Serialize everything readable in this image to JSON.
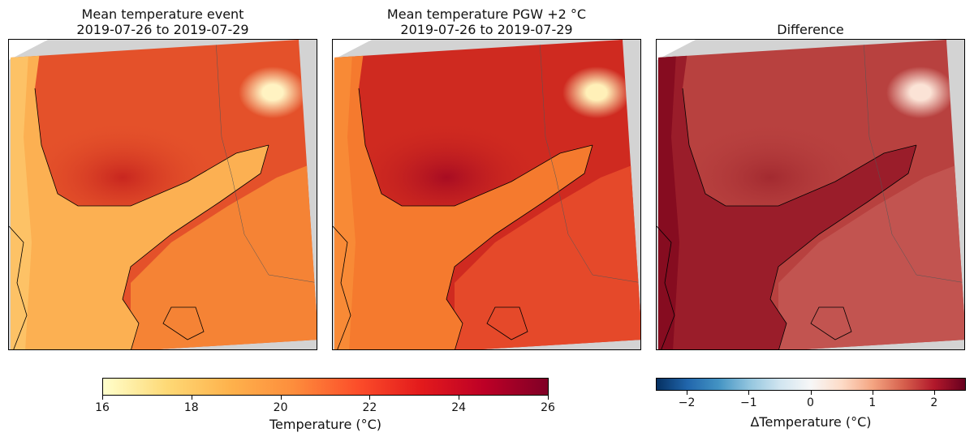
{
  "panels": [
    {
      "title": "Mean temperature event\n2019-07-26 to 2019-07-29",
      "colors": {
        "north": "#e4512a",
        "north_dark": "#c8261f",
        "sea": "#fcb052",
        "sea_left": "#fdc266",
        "south": "#f58335",
        "lake": "#fff3c2"
      }
    },
    {
      "title": "Mean temperature PGW +2 °C\n2019-07-26 to 2019-07-29",
      "colors": {
        "north": "#cf2a20",
        "north_dark": "#a80c22",
        "sea": "#f57a2e",
        "sea_left": "#f88a36",
        "south": "#e5492a",
        "lake": "#fff0b8"
      }
    },
    {
      "title": "Difference",
      "colors": {
        "north": "#b8413f",
        "north_dark": "#a32a30",
        "sea": "#9a1d2a",
        "sea_left": "#860c20",
        "south": "#c25450",
        "lake": "#fbe3d6"
      }
    }
  ],
  "colorbars": [
    {
      "label": "Temperature (°C)",
      "range": [
        16,
        26
      ],
      "ticks": [
        "16",
        "18",
        "20",
        "22",
        "24",
        "26"
      ],
      "tick_values": [
        16,
        18,
        20,
        22,
        24,
        26
      ],
      "colormap": [
        "#ffffcc",
        "#fed976",
        "#feb24c",
        "#fd8d3c",
        "#fc4e2a",
        "#e31a1c",
        "#bd0026",
        "#800026"
      ]
    },
    {
      "label": "ΔTemperature (°C)",
      "range": [
        -2.5,
        2.5
      ],
      "ticks": [
        "−2",
        "−1",
        "0",
        "1",
        "2"
      ],
      "tick_values": [
        -2,
        -1,
        0,
        1,
        2
      ],
      "colormap": [
        "#053061",
        "#2166ac",
        "#4393c3",
        "#92c5de",
        "#d1e5f0",
        "#f7f7f7",
        "#fddbc7",
        "#f4a582",
        "#d6604d",
        "#b2182b",
        "#67001f"
      ]
    }
  ]
}
